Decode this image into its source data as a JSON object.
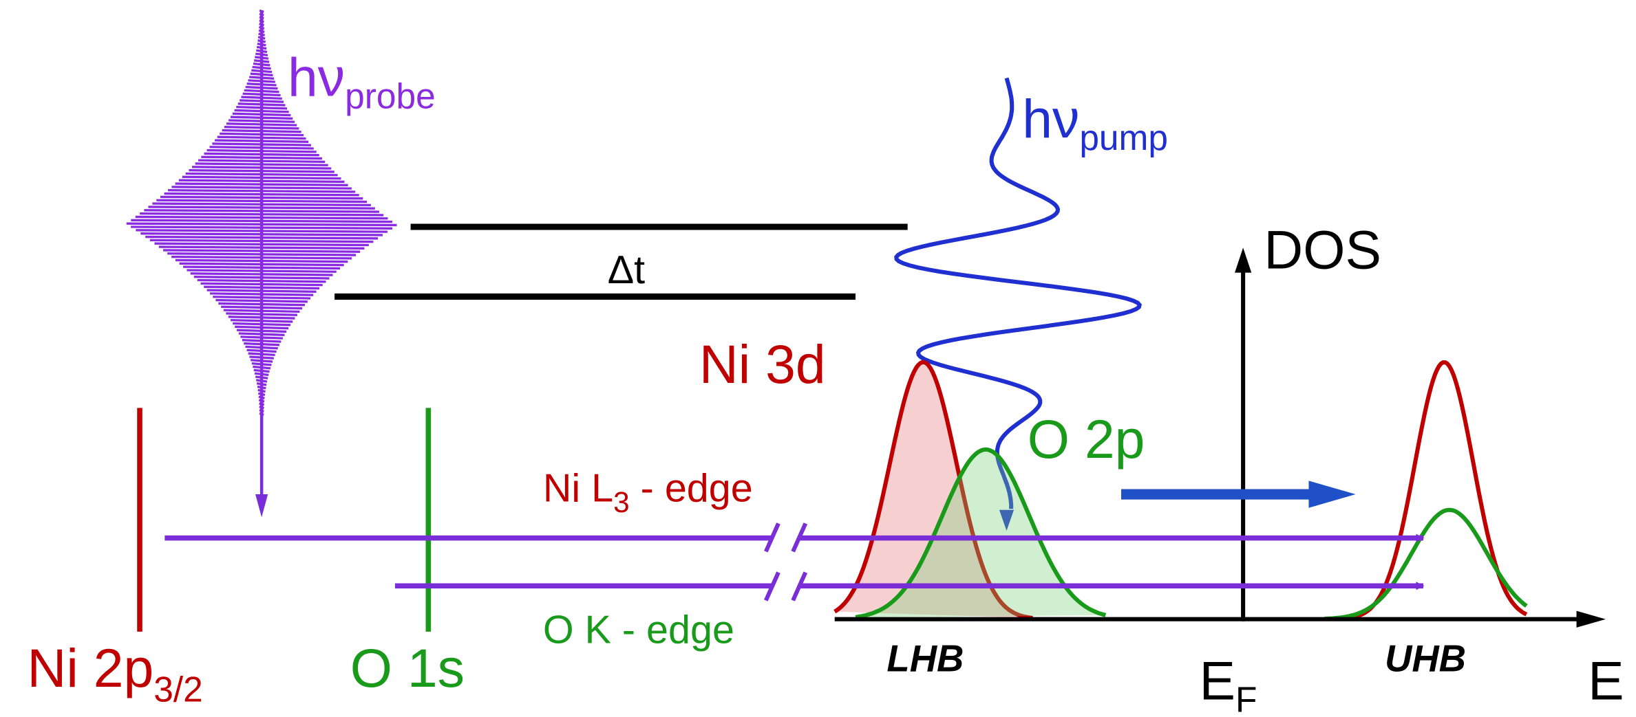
{
  "probe": {
    "symbol": "hν",
    "subscript": "probe"
  },
  "pump": {
    "symbol": "hν",
    "subscript": "pump"
  },
  "delay": "Δt",
  "axes": {
    "y": "DOS",
    "x": "E",
    "fermi": {
      "symbol": "E",
      "subscript": "F"
    }
  },
  "levels": [
    {
      "symbol": "Ni 2p",
      "subscript": "3/2"
    },
    {
      "symbol": "O 1s"
    }
  ],
  "bands": {
    "ni3d": "Ni 3d",
    "o2p": "O 2p",
    "lower": "LHB",
    "upper": "UHB"
  },
  "edges": [
    {
      "symbol": "Ni L",
      "subscript": "3",
      "suffix": " - edge"
    },
    {
      "symbol": "O K - edge"
    }
  ]
}
